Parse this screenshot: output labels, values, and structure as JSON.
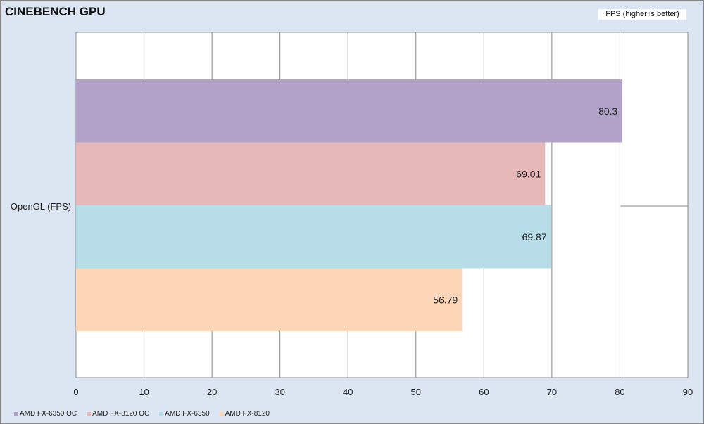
{
  "chart_data": {
    "type": "bar",
    "orientation": "horizontal",
    "title": "CINEBENCH GPU",
    "subtitle": "FPS (higher is better)",
    "categories": [
      "OpenGL (FPS)"
    ],
    "series": [
      {
        "name": "AMD FX-6350 OC",
        "values": [
          80.3
        ],
        "label": "80.3",
        "color": "#b2a2c7"
      },
      {
        "name": "AMD FX-8120 OC",
        "values": [
          69.01
        ],
        "label": "69.01",
        "color": "#e6b9b8"
      },
      {
        "name": "AMD FX-6350",
        "values": [
          69.87
        ],
        "label": "69.87",
        "color": "#b7dde8"
      },
      {
        "name": "AMD FX-8120",
        "values": [
          56.79
        ],
        "label": "56.79",
        "color": "#fbd5b5"
      }
    ],
    "xlim": [
      0,
      90
    ],
    "xticks": [
      "0",
      "10",
      "20",
      "30",
      "40",
      "50",
      "60",
      "70",
      "80",
      "90"
    ],
    "grid": true,
    "legend": "bottom-left"
  }
}
